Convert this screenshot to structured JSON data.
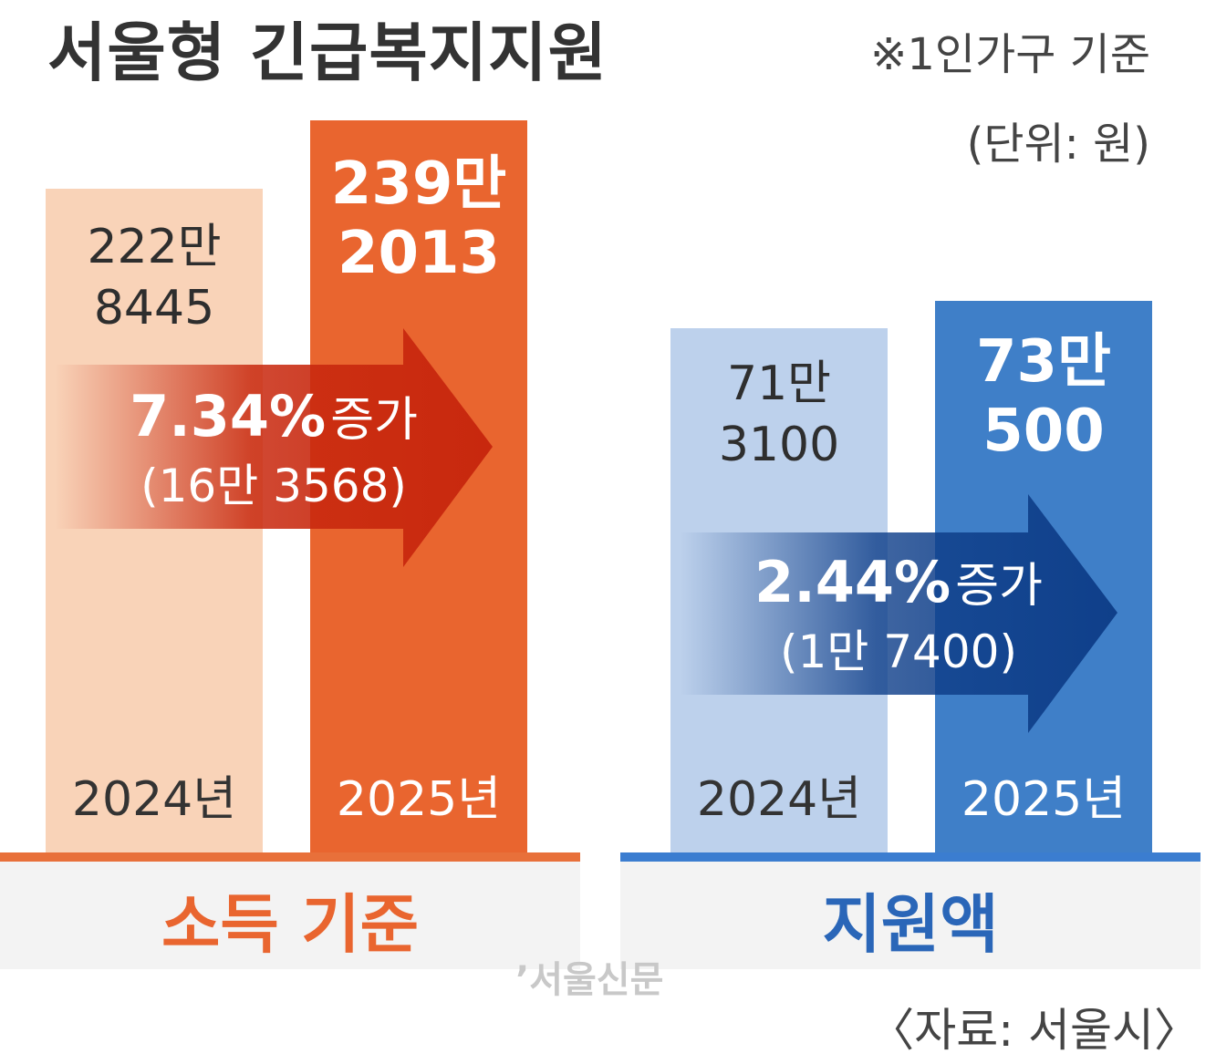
{
  "header": {
    "title": "서울형 긴급복지지원",
    "note": "※1인가구 기준",
    "unit": "(단위: 원)"
  },
  "colors": {
    "income_2024": "#f9d3b8",
    "income_2025": "#e9652f",
    "income_arrow": "#c8280e",
    "income_line": "#e8703a",
    "income_label": "#e9652f",
    "support_2024": "#bdd1ec",
    "support_2025": "#3f7fc8",
    "support_arrow": "#0f3f8a",
    "support_line": "#3b7dd0",
    "support_label": "#2a66b8"
  },
  "chart_data": [
    {
      "type": "bar",
      "title": "소득 기준",
      "categories": [
        "2024년",
        "2025년"
      ],
      "values": [
        2228445,
        2392013
      ],
      "value_labels": [
        [
          "222만",
          "8445"
        ],
        [
          "239만",
          "2013"
        ]
      ],
      "change": {
        "percent_label": "7.34%",
        "word": "증가",
        "amount_label": "(16만 3568)",
        "percent": 7.34,
        "amount": 163568
      }
    },
    {
      "type": "bar",
      "title": "지원액",
      "categories": [
        "2024년",
        "2025년"
      ],
      "values": [
        713100,
        730500
      ],
      "value_labels": [
        [
          "71만",
          "3100"
        ],
        [
          "73만",
          "500"
        ]
      ],
      "change": {
        "percent_label": "2.44%",
        "word": "증가",
        "amount_label": "(1만 7400)",
        "percent": 2.44,
        "amount": 17400
      }
    }
  ],
  "footer": {
    "watermark": "’서울신문",
    "source": "〈자료: 서울시〉"
  }
}
